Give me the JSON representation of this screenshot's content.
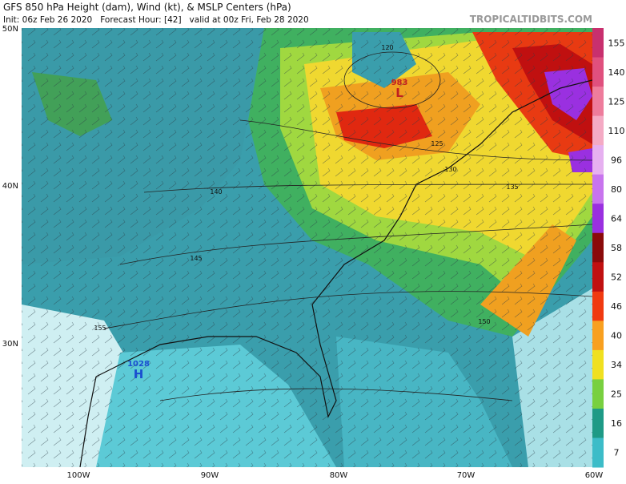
{
  "header": {
    "title": "GFS 850 hPa Height (dam), Wind (kt), & MSLP Centers (hPa)",
    "subtitle": "Init: 06z Feb 26 2020   Forecast Hour: [42]   valid at 00z Fri, Feb 28 2020",
    "watermark": "TROPICALTIDBITS.COM"
  },
  "latitude_labels": [
    "50N",
    "40N",
    "30N"
  ],
  "longitude_labels": [
    "100W",
    "90W",
    "80W",
    "70W",
    "60W"
  ],
  "colorbar": {
    "labels": [
      "155",
      "140",
      "125",
      "110",
      "96",
      "80",
      "64",
      "58",
      "52",
      "46",
      "40",
      "34",
      "25",
      "16",
      "7"
    ],
    "colors": [
      "#c8306e",
      "#e0507e",
      "#ee7c9c",
      "#f4aac4",
      "#e6b0f0",
      "#c874ee",
      "#9a30e0",
      "#8a0a0a",
      "#c01010",
      "#f03a10",
      "#f8a020",
      "#f0e020",
      "#78d040",
      "#1e9a86",
      "#3cbcc8"
    ]
  },
  "pressure_centers": [
    {
      "value": "983",
      "type": "L"
    },
    {
      "value": "1028",
      "type": "H"
    }
  ],
  "contour_labels": [
    "120",
    "125",
    "130",
    "135",
    "140",
    "145",
    "150",
    "155"
  ]
}
